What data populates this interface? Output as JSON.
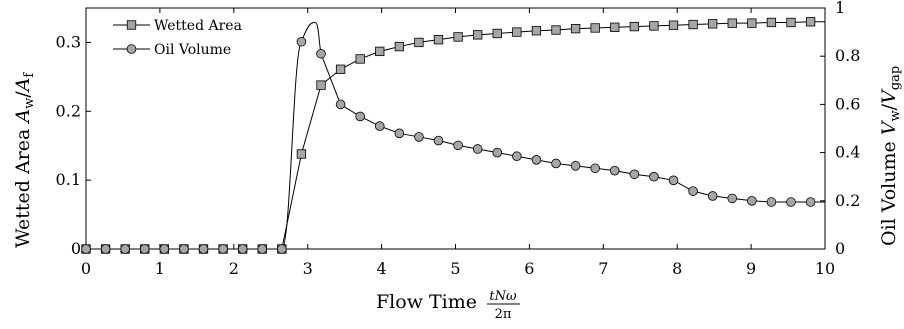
{
  "chart_data": {
    "type": "line",
    "xlabel": {
      "main": "Flow Time",
      "frac_num": "tNω",
      "frac_den": "2π"
    },
    "ylabel_left": {
      "main": "Wetted Area ",
      "a": "A",
      "a_sub": "w",
      "slash": "/",
      "b": "A",
      "b_sub": "f"
    },
    "ylabel_right": {
      "main": "Oil Volume ",
      "a": "V",
      "a_sub": "w",
      "slash": "/",
      "b": "V",
      "b_sub": "gap"
    },
    "xlim": [
      0,
      10
    ],
    "ylim_left": [
      0,
      0.35
    ],
    "ylim_right": [
      0,
      1
    ],
    "xticks": [
      0,
      1,
      2,
      3,
      4,
      5,
      6,
      7,
      8,
      9,
      10
    ],
    "xtick_labels": [
      "0",
      "1",
      "2",
      "3",
      "4",
      "5",
      "6",
      "7",
      "8",
      "9",
      "10"
    ],
    "yticks_left": [
      0,
      0.1,
      0.2,
      0.3
    ],
    "ytick_labels_left": [
      "0",
      "0.1",
      "0.2",
      "0.3"
    ],
    "yticks_right": [
      0,
      0.2,
      0.4,
      0.6,
      0.8,
      1
    ],
    "ytick_labels_right": [
      "0",
      "0.2",
      "0.4",
      "0.6",
      "0.8",
      "1"
    ],
    "grid": false,
    "legend": {
      "position": "top-left"
    },
    "series": [
      {
        "name": "Wetted Area",
        "axis": "left",
        "marker": "square",
        "color": "#000000",
        "marker_fill": "#a6a6a6",
        "x": [
          0,
          0.265,
          0.53,
          0.795,
          1.06,
          1.325,
          1.59,
          1.855,
          2.12,
          2.385,
          2.65,
          2.915,
          3.18,
          3.445,
          3.71,
          3.975,
          4.24,
          4.505,
          4.77,
          5.035,
          5.3,
          5.565,
          5.83,
          6.095,
          6.36,
          6.625,
          6.89,
          7.155,
          7.42,
          7.685,
          7.95,
          8.215,
          8.48,
          8.745,
          9.01,
          9.275,
          9.54,
          9.805
        ],
        "y": [
          0,
          0,
          0,
          0,
          0,
          0,
          0,
          0,
          0,
          0,
          0,
          0.138,
          0.238,
          0.261,
          0.276,
          0.287,
          0.294,
          0.3,
          0.304,
          0.308,
          0.311,
          0.313,
          0.315,
          0.317,
          0.318,
          0.32,
          0.321,
          0.322,
          0.323,
          0.324,
          0.325,
          0.326,
          0.327,
          0.328,
          0.328,
          0.329,
          0.329,
          0.33
        ]
      },
      {
        "name": "Oil Volume",
        "axis": "right",
        "marker": "circle",
        "color": "#000000",
        "marker_fill": "#a6a6a6",
        "x": [
          0,
          0.265,
          0.53,
          0.795,
          1.06,
          1.325,
          1.59,
          1.855,
          2.12,
          2.385,
          2.65,
          2.915,
          3.18,
          3.445,
          3.71,
          3.975,
          4.24,
          4.505,
          4.77,
          5.035,
          5.3,
          5.565,
          5.83,
          6.095,
          6.36,
          6.625,
          6.89,
          7.155,
          7.42,
          7.685,
          7.95,
          8.215,
          8.48,
          8.745,
          9.01,
          9.275,
          9.54,
          9.805
        ],
        "y": [
          0,
          0,
          0,
          0,
          0,
          0,
          0,
          0,
          0,
          0,
          0,
          0.86,
          0.81,
          0.6,
          0.55,
          0.51,
          0.48,
          0.465,
          0.45,
          0.43,
          0.415,
          0.4,
          0.385,
          0.37,
          0.355,
          0.345,
          0.335,
          0.325,
          0.31,
          0.3,
          0.285,
          0.24,
          0.22,
          0.21,
          0.2,
          0.195,
          0.195,
          0.195
        ],
        "smooth_peak": {
          "x": 3.1,
          "y": 0.94
        }
      }
    ]
  }
}
